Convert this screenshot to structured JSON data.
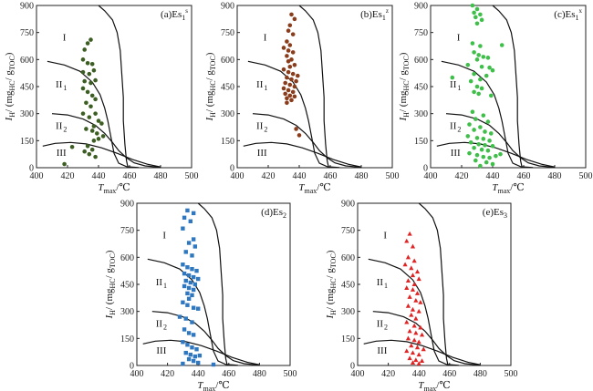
{
  "chart_data": [
    {
      "id": "a",
      "type": "scatter",
      "label": "(a)Es",
      "label_sub": "1",
      "label_sup": "s",
      "marker": "circle",
      "color": "#3d5e22",
      "xlim": [
        400,
        500
      ],
      "ylim": [
        0,
        900
      ],
      "xticks": [
        "400",
        "420",
        "440",
        "460",
        "480",
        "500"
      ],
      "yticks": [
        "0",
        "150",
        "300",
        "450",
        "600",
        "750",
        "900"
      ],
      "xlabel_main": "T",
      "xlabel_sub": "max",
      "xlabel_unit": "/℃",
      "ylabel_main": "I",
      "ylabel_sub": "H",
      "ylabel_unit": "/ (mg",
      "ylabel_sub2": "HC",
      "ylabel_mid": "/ g",
      "ylabel_sub3": "TOC",
      "ylabel_end": ")",
      "zones": [
        "I",
        "II",
        "II",
        "III"
      ],
      "zone_subs": [
        "",
        "1",
        "2",
        ""
      ],
      "points": [
        [
          431,
          655
        ],
        [
          433,
          690
        ],
        [
          435,
          710
        ],
        [
          430,
          600
        ],
        [
          433,
          580
        ],
        [
          436,
          575
        ],
        [
          430,
          530
        ],
        [
          434,
          520
        ],
        [
          437,
          540
        ],
        [
          431,
          480
        ],
        [
          435,
          470
        ],
        [
          438,
          485
        ],
        [
          430,
          440
        ],
        [
          433,
          420
        ],
        [
          436,
          400
        ],
        [
          432,
          360
        ],
        [
          435,
          340
        ],
        [
          438,
          380
        ],
        [
          430,
          300
        ],
        [
          434,
          280
        ],
        [
          438,
          300
        ],
        [
          440,
          260
        ],
        [
          442,
          245
        ],
        [
          437,
          230
        ],
        [
          432,
          215
        ],
        [
          436,
          205
        ],
        [
          439,
          190
        ],
        [
          443,
          175
        ],
        [
          440,
          160
        ],
        [
          437,
          150
        ],
        [
          433,
          120
        ],
        [
          436,
          100
        ],
        [
          431,
          90
        ],
        [
          434,
          75
        ],
        [
          438,
          60
        ],
        [
          423,
          115
        ],
        [
          418,
          20
        ]
      ]
    },
    {
      "id": "b",
      "type": "scatter",
      "label": "(b)Es",
      "label_sub": "1",
      "label_sup": "z",
      "marker": "circle",
      "color": "#8a3d1c",
      "xlim": [
        400,
        500
      ],
      "ylim": [
        0,
        900
      ],
      "xticks": [
        "400",
        "420",
        "440",
        "460",
        "480",
        "500"
      ],
      "yticks": [
        "0",
        "150",
        "300",
        "450",
        "600",
        "750",
        "900"
      ],
      "xlabel_main": "T",
      "xlabel_sub": "max",
      "xlabel_unit": "/℃",
      "ylabel_main": "I",
      "ylabel_sub": "H",
      "ylabel_unit": "/ (mg",
      "ylabel_sub2": "HC",
      "ylabel_mid": "/ g",
      "ylabel_sub3": "TOC",
      "ylabel_end": ")",
      "zones": [
        "I",
        "II",
        "II",
        "III"
      ],
      "zone_subs": [
        "",
        "1",
        "2",
        ""
      ],
      "points": [
        [
          435,
          850
        ],
        [
          437,
          825
        ],
        [
          434,
          790
        ],
        [
          433,
          760
        ],
        [
          436,
          740
        ],
        [
          432,
          700
        ],
        [
          434,
          680
        ],
        [
          430,
          665
        ],
        [
          433,
          650
        ],
        [
          436,
          640
        ],
        [
          432,
          620
        ],
        [
          435,
          600
        ],
        [
          433,
          590
        ],
        [
          437,
          570
        ],
        [
          434,
          560
        ],
        [
          430,
          545
        ],
        [
          433,
          530
        ],
        [
          436,
          520
        ],
        [
          439,
          510
        ],
        [
          432,
          500
        ],
        [
          435,
          490
        ],
        [
          438,
          480
        ],
        [
          431,
          470
        ],
        [
          434,
          460
        ],
        [
          437,
          450
        ],
        [
          430,
          440
        ],
        [
          433,
          430
        ],
        [
          436,
          420
        ],
        [
          431,
          410
        ],
        [
          434,
          400
        ],
        [
          437,
          395
        ],
        [
          432,
          385
        ],
        [
          435,
          375
        ],
        [
          432,
          360
        ],
        [
          438,
          215
        ],
        [
          440,
          180
        ]
      ]
    },
    {
      "id": "c",
      "type": "scatter",
      "label": "(c)Es",
      "label_sub": "1",
      "label_sup": "x",
      "marker": "circle",
      "color": "#3fbf4a",
      "xlim": [
        400,
        500
      ],
      "ylim": [
        0,
        900
      ],
      "xticks": [
        "400",
        "420",
        "440",
        "460",
        "480",
        "500"
      ],
      "yticks": [
        "0",
        "150",
        "300",
        "450",
        "600",
        "750",
        "900"
      ],
      "xlabel_main": "T",
      "xlabel_sub": "max",
      "xlabel_unit": "/℃",
      "ylabel_main": "I",
      "ylabel_sub": "H",
      "ylabel_unit": "/ (mg",
      "ylabel_sub2": "HC",
      "ylabel_mid": "/ g",
      "ylabel_sub3": "TOC",
      "ylabel_end": ")",
      "zones": [
        "I",
        "II",
        "II",
        "III"
      ],
      "zone_subs": [
        "",
        "1",
        "2",
        ""
      ],
      "points": [
        [
          427,
          900
        ],
        [
          430,
          880
        ],
        [
          428,
          860
        ],
        [
          432,
          850
        ],
        [
          429,
          835
        ],
        [
          433,
          820
        ],
        [
          430,
          800
        ],
        [
          427,
          690
        ],
        [
          432,
          675
        ],
        [
          446,
          680
        ],
        [
          428,
          640
        ],
        [
          431,
          625
        ],
        [
          434,
          615
        ],
        [
          437,
          610
        ],
        [
          430,
          600
        ],
        [
          424,
          570
        ],
        [
          433,
          560
        ],
        [
          438,
          555
        ],
        [
          440,
          540
        ],
        [
          428,
          520
        ],
        [
          436,
          510
        ],
        [
          432,
          490
        ],
        [
          426,
          480
        ],
        [
          414,
          500
        ],
        [
          430,
          450
        ],
        [
          433,
          440
        ],
        [
          428,
          420
        ],
        [
          431,
          410
        ],
        [
          439,
          400
        ],
        [
          427,
          310
        ],
        [
          434,
          290
        ],
        [
          429,
          270
        ],
        [
          437,
          255
        ],
        [
          425,
          240
        ],
        [
          432,
          225
        ],
        [
          428,
          210
        ],
        [
          435,
          200
        ],
        [
          439,
          190
        ],
        [
          424,
          175
        ],
        [
          430,
          165
        ],
        [
          434,
          160
        ],
        [
          438,
          150
        ],
        [
          426,
          140
        ],
        [
          431,
          130
        ],
        [
          435,
          125
        ],
        [
          440,
          120
        ],
        [
          428,
          110
        ],
        [
          433,
          100
        ],
        [
          437,
          95
        ],
        [
          425,
          80
        ],
        [
          430,
          70
        ],
        [
          434,
          60
        ],
        [
          438,
          55
        ],
        [
          442,
          65
        ],
        [
          445,
          75
        ],
        [
          429,
          40
        ],
        [
          436,
          30
        ],
        [
          440,
          20
        ],
        [
          432,
          10
        ]
      ]
    },
    {
      "id": "d",
      "type": "scatter",
      "label": "(d)Es",
      "label_sub": "2",
      "label_sup": "",
      "marker": "square",
      "color": "#2f78c0",
      "xlim": [
        400,
        500
      ],
      "ylim": [
        0,
        900
      ],
      "xticks": [
        "400",
        "420",
        "440",
        "460",
        "480",
        "500"
      ],
      "yticks": [
        "0",
        "150",
        "300",
        "450",
        "600",
        "750",
        "900"
      ],
      "xlabel_main": "T",
      "xlabel_sub": "max",
      "xlabel_unit": "/℃",
      "ylabel_main": "I",
      "ylabel_sub": "H",
      "ylabel_unit": "/ (mg",
      "ylabel_sub2": "HC",
      "ylabel_mid": "/ g",
      "ylabel_sub3": "TOC",
      "ylabel_end": ")",
      "zones": [
        "I",
        "II",
        "II",
        "III"
      ],
      "zone_subs": [
        "",
        "1",
        "2",
        ""
      ],
      "points": [
        [
          433,
          860
        ],
        [
          437,
          845
        ],
        [
          431,
          820
        ],
        [
          435,
          800
        ],
        [
          430,
          760
        ],
        [
          437,
          700
        ],
        [
          434,
          680
        ],
        [
          438,
          660
        ],
        [
          432,
          630
        ],
        [
          436,
          610
        ],
        [
          430,
          560
        ],
        [
          433,
          545
        ],
        [
          436,
          535
        ],
        [
          439,
          525
        ],
        [
          431,
          510
        ],
        [
          434,
          500
        ],
        [
          437,
          490
        ],
        [
          440,
          480
        ],
        [
          432,
          470
        ],
        [
          435,
          460
        ],
        [
          438,
          450
        ],
        [
          431,
          440
        ],
        [
          434,
          430
        ],
        [
          437,
          420
        ],
        [
          433,
          400
        ],
        [
          436,
          390
        ],
        [
          434,
          370
        ],
        [
          430,
          350
        ],
        [
          433,
          335
        ],
        [
          437,
          320
        ],
        [
          440,
          315
        ],
        [
          428,
          270
        ],
        [
          432,
          260
        ],
        [
          436,
          240
        ],
        [
          431,
          200
        ],
        [
          434,
          180
        ],
        [
          437,
          170
        ],
        [
          430,
          130
        ],
        [
          433,
          115
        ],
        [
          436,
          100
        ],
        [
          439,
          90
        ],
        [
          432,
          70
        ],
        [
          435,
          60
        ],
        [
          438,
          50
        ],
        [
          441,
          55
        ],
        [
          434,
          35
        ],
        [
          437,
          25
        ],
        [
          440,
          15
        ],
        [
          450,
          5
        ],
        [
          430,
          10
        ]
      ]
    },
    {
      "id": "e",
      "type": "scatter",
      "label": "(e)Es",
      "label_sub": "3",
      "label_sup": "",
      "marker": "triangle",
      "color": "#e02424",
      "xlim": [
        400,
        500
      ],
      "ylim": [
        0,
        900
      ],
      "xticks": [
        "400",
        "420",
        "440",
        "460",
        "480",
        "500"
      ],
      "yticks": [
        "0",
        "150",
        "300",
        "450",
        "600",
        "750",
        "900"
      ],
      "xlabel_main": "T",
      "xlabel_sub": "max",
      "xlabel_unit": "/℃",
      "ylabel_main": "I",
      "ylabel_sub": "H",
      "ylabel_unit": "/ (mg",
      "ylabel_sub2": "HC",
      "ylabel_mid": "/ g",
      "ylabel_sub3": "TOC",
      "ylabel_end": ")",
      "zones": [
        "I",
        "II",
        "II",
        "III"
      ],
      "zone_subs": [
        "",
        "1",
        "2",
        ""
      ],
      "points": [
        [
          434,
          730
        ],
        [
          432,
          690
        ],
        [
          436,
          660
        ],
        [
          433,
          600
        ],
        [
          437,
          580
        ],
        [
          431,
          560
        ],
        [
          435,
          540
        ],
        [
          439,
          520
        ],
        [
          436,
          500
        ],
        [
          440,
          480
        ],
        [
          433,
          470
        ],
        [
          437,
          450
        ],
        [
          432,
          430
        ],
        [
          436,
          420
        ],
        [
          439,
          400
        ],
        [
          434,
          380
        ],
        [
          438,
          360
        ],
        [
          441,
          350
        ],
        [
          433,
          330
        ],
        [
          436,
          310
        ],
        [
          440,
          300
        ],
        [
          435,
          280
        ],
        [
          438,
          260
        ],
        [
          432,
          240
        ],
        [
          437,
          220
        ],
        [
          441,
          210
        ],
        [
          434,
          190
        ],
        [
          438,
          180
        ],
        [
          442,
          170
        ],
        [
          433,
          150
        ],
        [
          437,
          140
        ],
        [
          440,
          130
        ],
        [
          435,
          110
        ],
        [
          439,
          100
        ],
        [
          443,
          90
        ],
        [
          432,
          80
        ],
        [
          436,
          70
        ],
        [
          440,
          60
        ],
        [
          434,
          40
        ],
        [
          438,
          30
        ],
        [
          442,
          25
        ],
        [
          436,
          15
        ],
        [
          440,
          10
        ]
      ]
    }
  ]
}
